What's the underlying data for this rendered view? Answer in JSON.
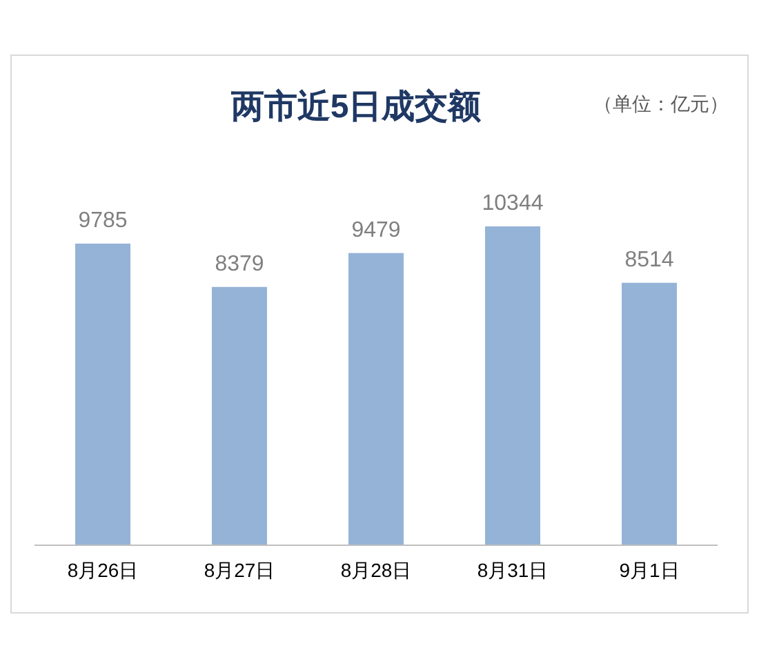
{
  "chart_data": {
    "type": "bar",
    "title": "两市近5日成交额",
    "annotations": [
      "（单位：亿元）"
    ],
    "categories": [
      "8月26日",
      "8月27日",
      "8月28日",
      "8月31日",
      "9月1日"
    ],
    "values": [
      9785,
      8379,
      9479,
      10344,
      8514
    ],
    "color": "#95b3d7",
    "data_labels": true
  }
}
